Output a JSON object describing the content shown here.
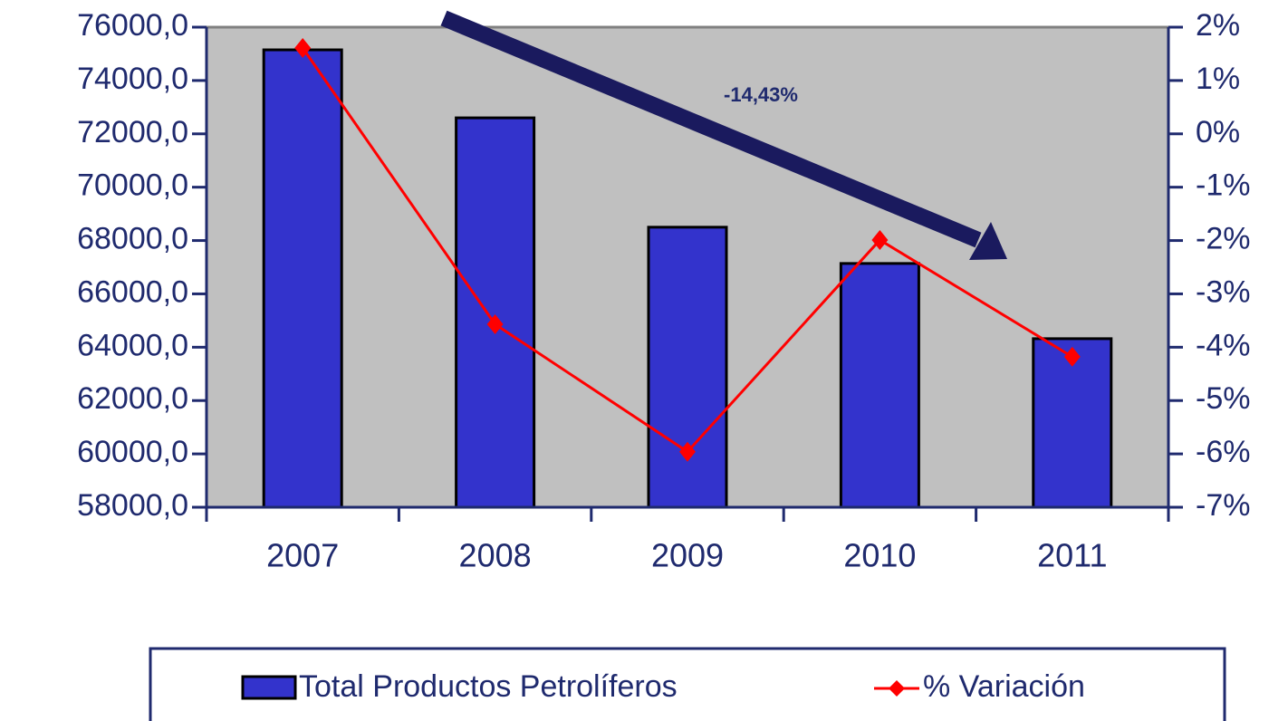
{
  "chart_data": {
    "type": "bar",
    "annotation": "-14,43%",
    "categories": [
      "2007",
      "2008",
      "2009",
      "2010",
      "2011"
    ],
    "series": [
      {
        "name": "Total Productos Petrolíferos",
        "type": "bar",
        "color": "#3333cc",
        "values": [
          75150,
          72600,
          68500,
          67140,
          64320
        ]
      },
      {
        "name": "% Variación",
        "type": "line",
        "axis": "y2",
        "color": "#ff0000",
        "values": [
          1.61,
          -3.57,
          -5.96,
          -1.99,
          -4.18
        ]
      }
    ],
    "ylim": [
      58000,
      76000
    ],
    "yticks": [
      {
        "value": 58000,
        "label": "58000,0"
      },
      {
        "value": 60000,
        "label": "60000,0"
      },
      {
        "value": 62000,
        "label": "62000,0"
      },
      {
        "value": 64000,
        "label": "64000,0"
      },
      {
        "value": 66000,
        "label": "66000,0"
      },
      {
        "value": 68000,
        "label": "68000,0"
      },
      {
        "value": 70000,
        "label": "70000,0"
      },
      {
        "value": 72000,
        "label": "72000,0"
      },
      {
        "value": 74000,
        "label": "74000,0"
      },
      {
        "value": 76000,
        "label": "76000,0"
      }
    ],
    "y2lim": [
      -7,
      2
    ],
    "y2ticks": [
      {
        "value": -7,
        "label": "-7%"
      },
      {
        "value": -6,
        "label": "-6%"
      },
      {
        "value": -5,
        "label": "-5%"
      },
      {
        "value": -4,
        "label": "-4%"
      },
      {
        "value": -3,
        "label": "-3%"
      },
      {
        "value": -2,
        "label": "-2%"
      },
      {
        "value": -1,
        "label": "-1%"
      },
      {
        "value": 0,
        "label": "0%"
      },
      {
        "value": 1,
        "label": "1%"
      },
      {
        "value": 2,
        "label": "2%"
      }
    ],
    "legend": "bottom"
  }
}
